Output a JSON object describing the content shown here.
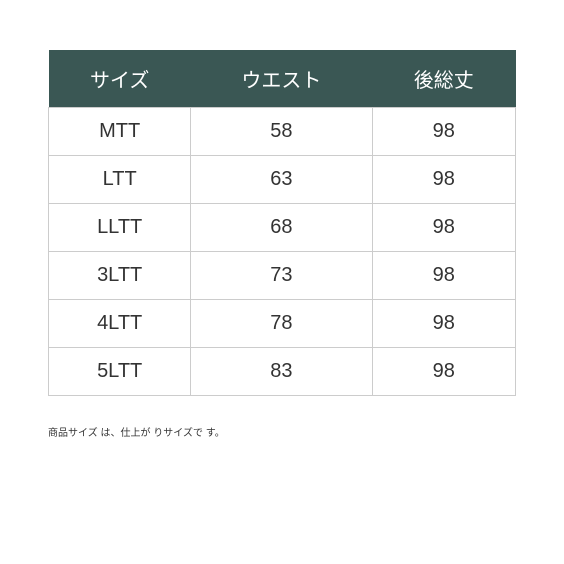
{
  "table": {
    "type": "table",
    "header_bg_color": "#3a5754",
    "header_text_color": "#ffffff",
    "cell_border_color": "#cccccc",
    "cell_text_color": "#333333",
    "background_color": "#ffffff",
    "header_fontsize": 20,
    "cell_fontsize": 20,
    "columns": [
      "サイズ",
      "ウエスト",
      "後総丈"
    ],
    "rows": [
      [
        "MTT",
        "58",
        "98"
      ],
      [
        "LTT",
        "63",
        "98"
      ],
      [
        "LLTT",
        "68",
        "98"
      ],
      [
        "3LTT",
        "73",
        "98"
      ],
      [
        "4LTT",
        "78",
        "98"
      ],
      [
        "5LTT",
        "83",
        "98"
      ]
    ]
  },
  "footnote": "商品サイズ は、仕上が りサイズで す。"
}
